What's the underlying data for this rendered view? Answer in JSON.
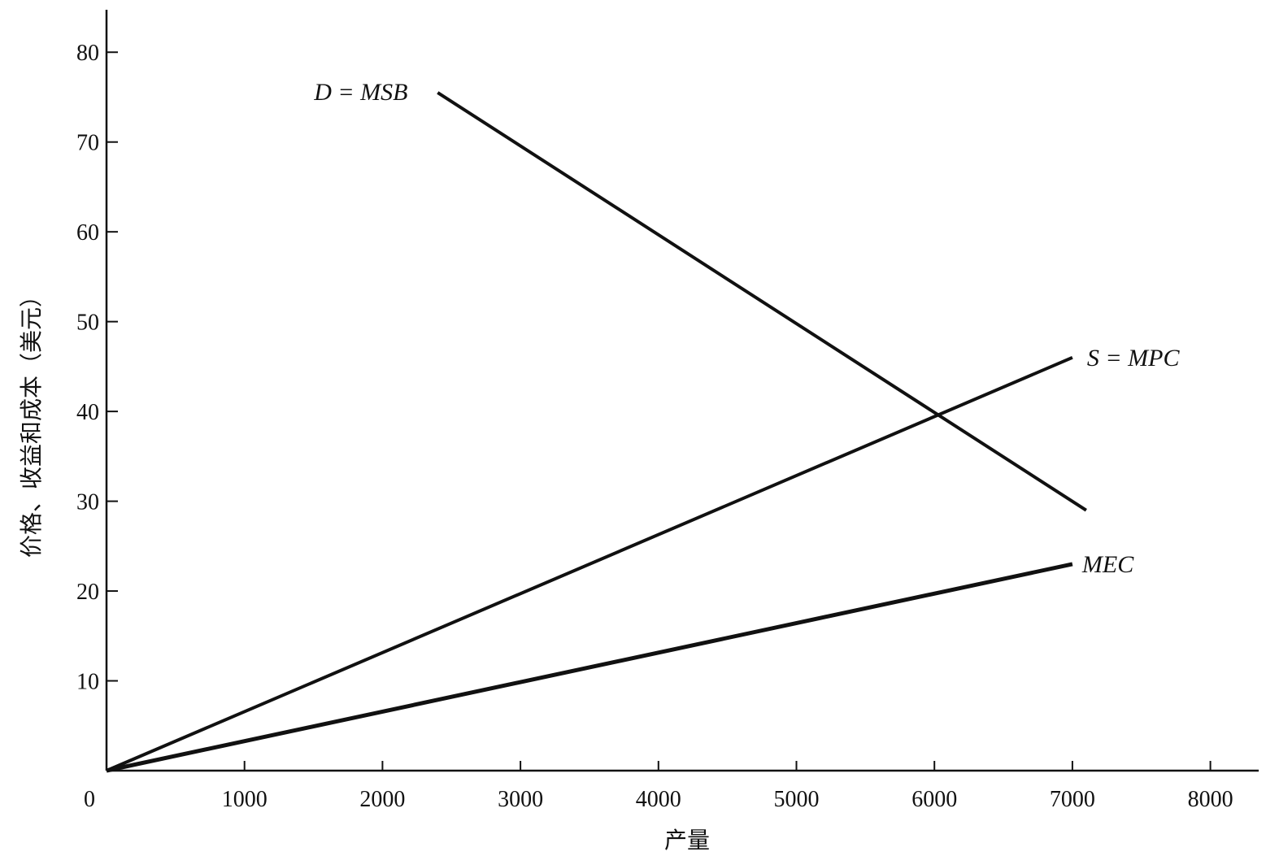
{
  "chart_data": {
    "type": "line",
    "xlabel": "产量",
    "ylabel": "价格、收益和成本（美元）",
    "xlim": [
      0,
      8300
    ],
    "ylim": [
      0,
      80
    ],
    "x_ticks": [
      0,
      1000,
      2000,
      3000,
      4000,
      5000,
      6000,
      7000,
      8000
    ],
    "x_tick_labels": [
      "0",
      "1000",
      "2000",
      "3000",
      "4000",
      "5000",
      "6000",
      "7000",
      "8000"
    ],
    "y_ticks": [
      10,
      20,
      30,
      40,
      50,
      60,
      70,
      80
    ],
    "y_tick_labels": [
      "10",
      "20",
      "30",
      "40",
      "50",
      "60",
      "70",
      "80"
    ],
    "grid": false,
    "legend": "none",
    "series": [
      {
        "name": "D = MSB",
        "x": [
          2400,
          7100
        ],
        "values": [
          75.5,
          29
        ],
        "color": "#111111"
      },
      {
        "name": "S = MPC",
        "x": [
          0,
          7000
        ],
        "values": [
          0,
          46
        ],
        "color": "#111111"
      },
      {
        "name": "MEC",
        "x": [
          0,
          7000
        ],
        "values": [
          0,
          23
        ],
        "color": "#111111"
      }
    ]
  }
}
